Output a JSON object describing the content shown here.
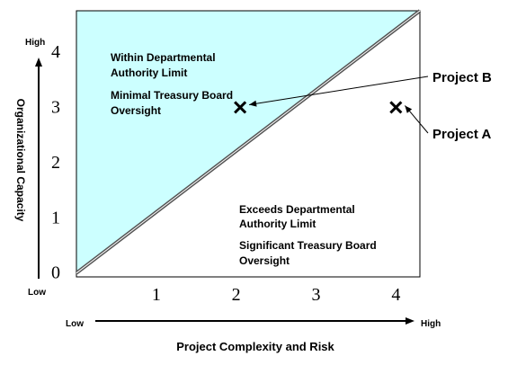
{
  "chart_data": {
    "type": "scatter",
    "title": "",
    "xlabel": "Project Complexity and Risk",
    "ylabel": "Organizational Capacity",
    "x_ticks": [
      "1",
      "2",
      "3",
      "4"
    ],
    "y_ticks": [
      "0",
      "1",
      "2",
      "3",
      "4"
    ],
    "xlim": [
      0,
      4.3
    ],
    "ylim": [
      -0.07,
      4.75
    ],
    "x_low_label": "Low",
    "x_high_label": "High",
    "y_low_label": "Low",
    "y_high_label": "High",
    "divider_line": {
      "from": [
        0,
        0
      ],
      "to": [
        4.3,
        4.75
      ]
    },
    "colors": {
      "upper_region": "#ccffff",
      "divider": "#555555",
      "marker": "#000000"
    },
    "regions": {
      "upper": {
        "line1": "Within Departmental",
        "line2": "Authority Limit",
        "line3": "Minimal Treasury Board",
        "line4": "Oversight"
      },
      "lower": {
        "line1": "Exceeds Departmental",
        "line2": "Authority Limit",
        "line3": "Significant Treasury Board",
        "line4": "Oversight"
      }
    },
    "points": [
      {
        "name": "Project B",
        "x": 2.05,
        "y": 3.0
      },
      {
        "name": "Project A",
        "x": 4.0,
        "y": 3.0
      }
    ]
  }
}
